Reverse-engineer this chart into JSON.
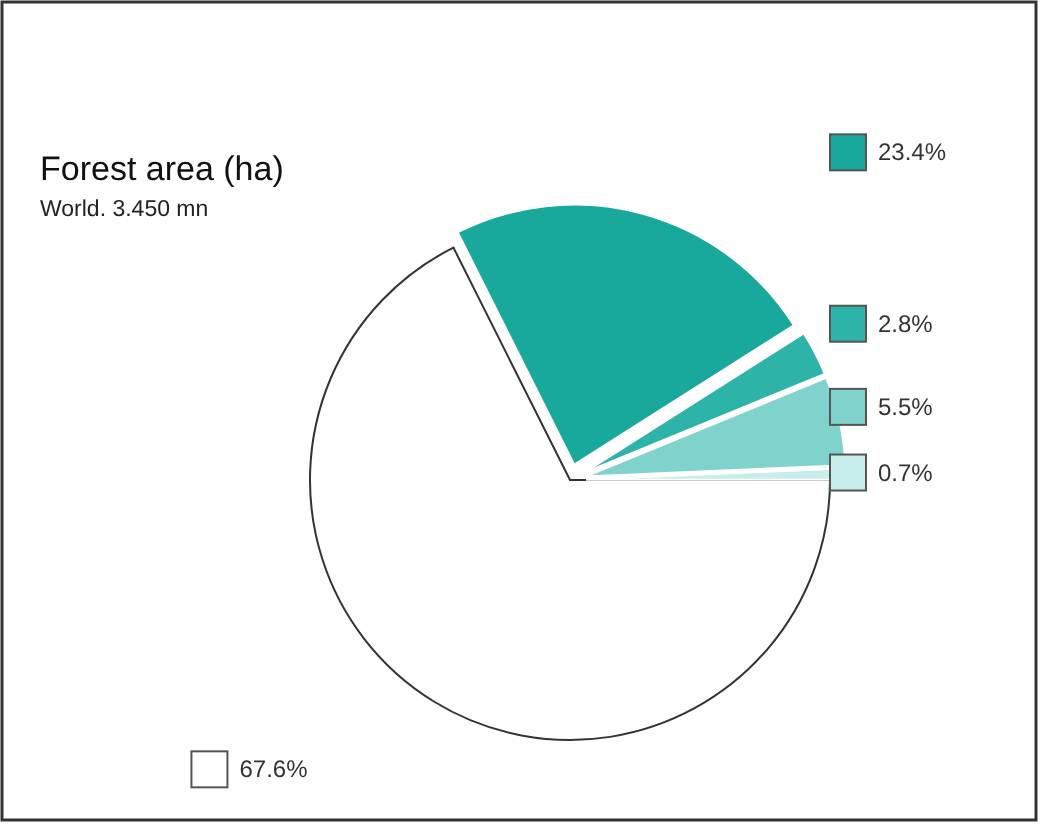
{
  "chart_data": {
    "type": "pie",
    "title": "Forest area (ha)",
    "subtitle": "World. 3.450 mn",
    "categories": [
      null,
      null,
      null,
      null,
      null
    ],
    "values": [
      67.6,
      23.4,
      2.8,
      5.5,
      0.7
    ],
    "colors": [
      "#ffffff",
      "#19a89c",
      "#2db3a8",
      "#80d3cc",
      "#c8eeeb"
    ],
    "value_labels": [
      "67.6%",
      "23.4%",
      "2.8%",
      "5.5%",
      "0.7%"
    ]
  }
}
